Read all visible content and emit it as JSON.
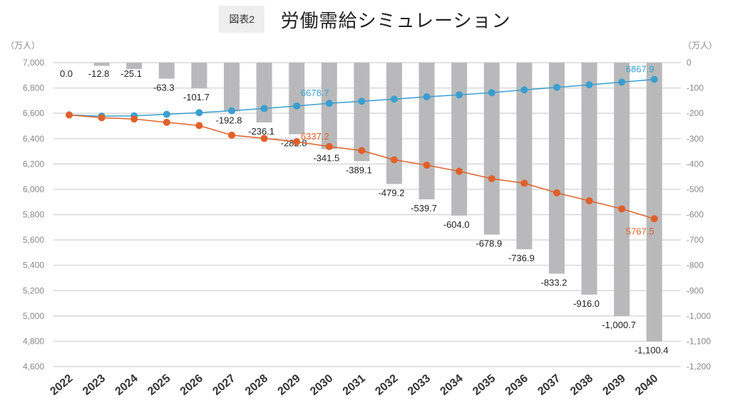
{
  "header": {
    "badge": "図表2",
    "title": "労働需給シミュレーション"
  },
  "chart_data": {
    "type": "bar+line",
    "title": "労働需給シミュレーション",
    "left_unit": "（万人）",
    "right_unit": "（万人）",
    "categories": [
      "2022",
      "2023",
      "2024",
      "2025",
      "2026",
      "2027",
      "2028",
      "2029",
      "2030",
      "2031",
      "2032",
      "2033",
      "2034",
      "2035",
      "2036",
      "2037",
      "2038",
      "2039",
      "2040"
    ],
    "left_axis": {
      "ylim": [
        4600,
        7000
      ],
      "ticks": [
        "7,000",
        "6,800",
        "6,600",
        "6,400",
        "6,200",
        "6,000",
        "5,800",
        "5,600",
        "5,400",
        "5,200",
        "5,000",
        "4,800",
        "4,600"
      ]
    },
    "right_axis": {
      "ylim": [
        -1200,
        0
      ],
      "ticks": [
        "0",
        "-100",
        "-200",
        "-300",
        "-400",
        "-500",
        "-600",
        "-700",
        "-800",
        "-900",
        "-1,000",
        "-1,100",
        "-1,200"
      ]
    },
    "grid": true,
    "bars": {
      "axis": "right",
      "color": "#b9b9bb",
      "values": [
        0.0,
        -12.8,
        -25.1,
        -63.3,
        -101.7,
        -192.8,
        -236.1,
        -282.8,
        -341.5,
        -389.1,
        -479.2,
        -539.7,
        -604.0,
        -678.9,
        -736.9,
        -833.2,
        -916.0,
        -1000.7,
        -1100.4
      ],
      "labels": [
        "0.0",
        "-12.8",
        "-25.1",
        "-63.3",
        "-101.7",
        "-192.8",
        "-236.1",
        "-282.8",
        "-341.5",
        "-389.1",
        "-479.2",
        "-539.7",
        "-604.0",
        "-678.9",
        "-736.9",
        "-833.2",
        "-916.0",
        "-1,000.7",
        "-1,100.4"
      ]
    },
    "series": [
      {
        "axis": "left",
        "color": "#3a9fcf",
        "values": [
          6587,
          6578,
          6580,
          6592,
          6605,
          6620,
          6638,
          6658,
          6678.7,
          6695,
          6712,
          6730,
          6746,
          6763,
          6785,
          6805,
          6825,
          6846,
          6867.9
        ],
        "labels": [
          {
            "index": 8,
            "text": "6678.7"
          },
          {
            "index": 18,
            "text": "6867.9"
          }
        ]
      },
      {
        "axis": "left",
        "color": "#e0602a",
        "values": [
          6587,
          6565.2,
          6554.9,
          6528.7,
          6503.3,
          6427.2,
          6401.9,
          6375.2,
          6337.2,
          6305.9,
          6232.8,
          6190.3,
          6142.0,
          6084.1,
          6048.1,
          5971.8,
          5909.0,
          5845.3,
          5767.5
        ],
        "labels": [
          {
            "index": 8,
            "text": "6337.2"
          },
          {
            "index": 18,
            "text": "5767.5"
          }
        ]
      }
    ]
  }
}
